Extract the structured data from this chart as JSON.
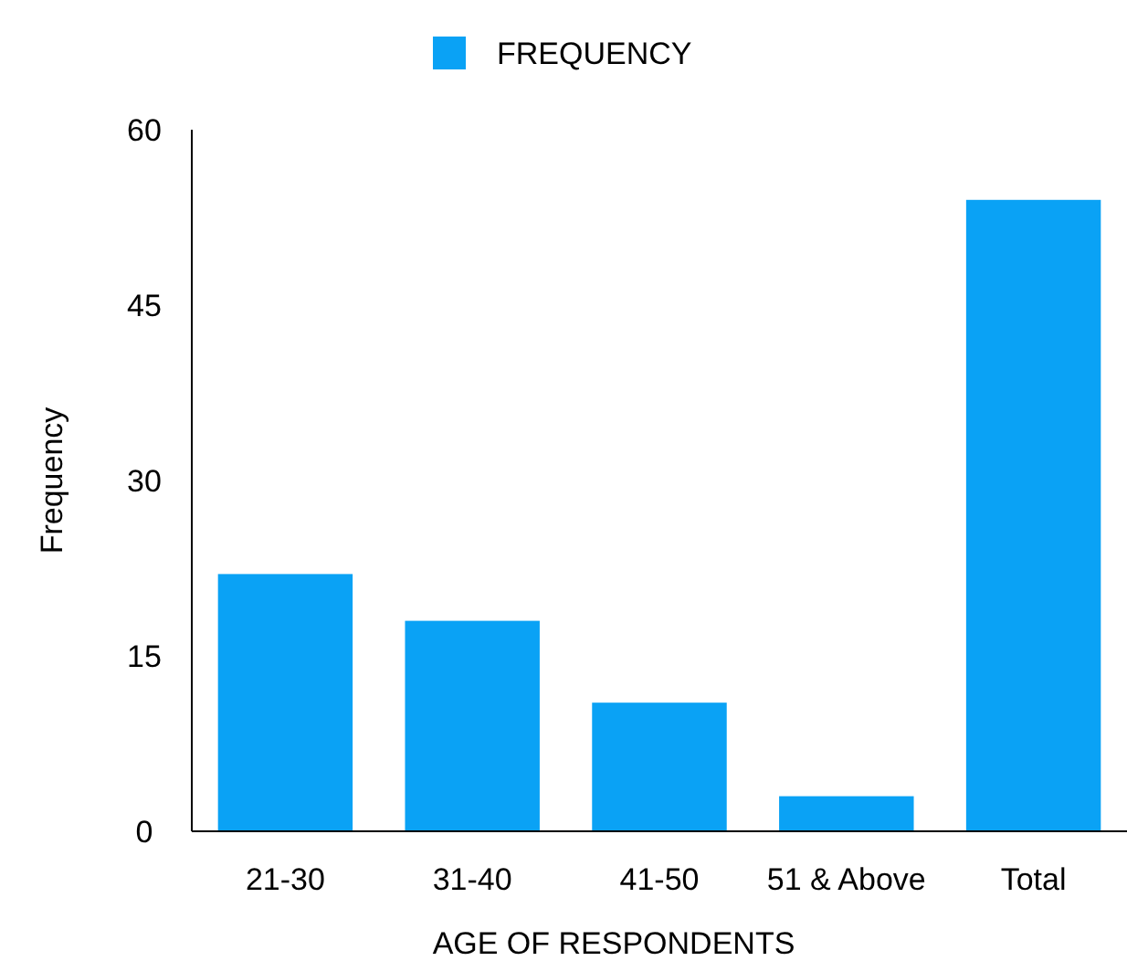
{
  "chart_data": {
    "type": "bar",
    "xlabel": "AGE OF RESPONDENTS",
    "ylabel": "Frequency",
    "categories": [
      "21-30",
      "31-40",
      "41-50",
      "51 & Above",
      "Total"
    ],
    "series": [
      {
        "name": "FREQUENCY",
        "color": "#0aa2f5",
        "values": [
          22,
          18,
          11,
          3,
          54
        ]
      }
    ],
    "ylim": [
      0,
      60
    ],
    "yticks": [
      0,
      15,
      30,
      45,
      60
    ],
    "grid": false,
    "legend": "top"
  }
}
